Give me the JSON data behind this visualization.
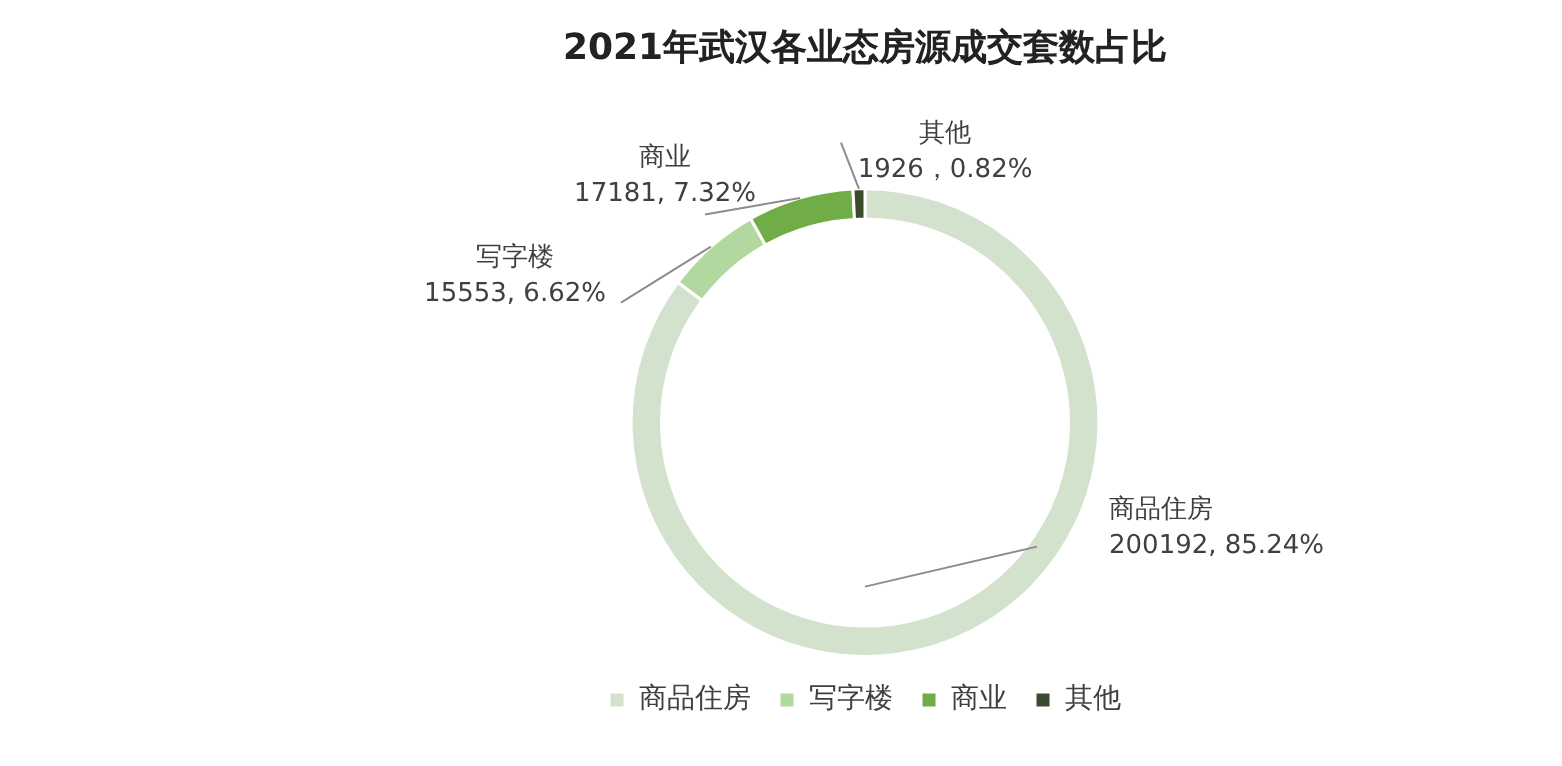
{
  "chart_data": {
    "type": "donut",
    "title": "2021年武汉各业态房源成交套数占比",
    "categories": [
      "商品住房",
      "写字楼",
      "商业",
      "其他"
    ],
    "values": [
      200192,
      15553,
      17181,
      1926
    ],
    "colors": [
      "#d3e2cd",
      "#b2d8a0",
      "#70ad47",
      "#3b4a2c"
    ],
    "value_labels": [
      "200192, 85.24%",
      "15553, 6.62%",
      "17181, 7.32%",
      "1926，0.82%"
    ],
    "legend": "bottom"
  }
}
